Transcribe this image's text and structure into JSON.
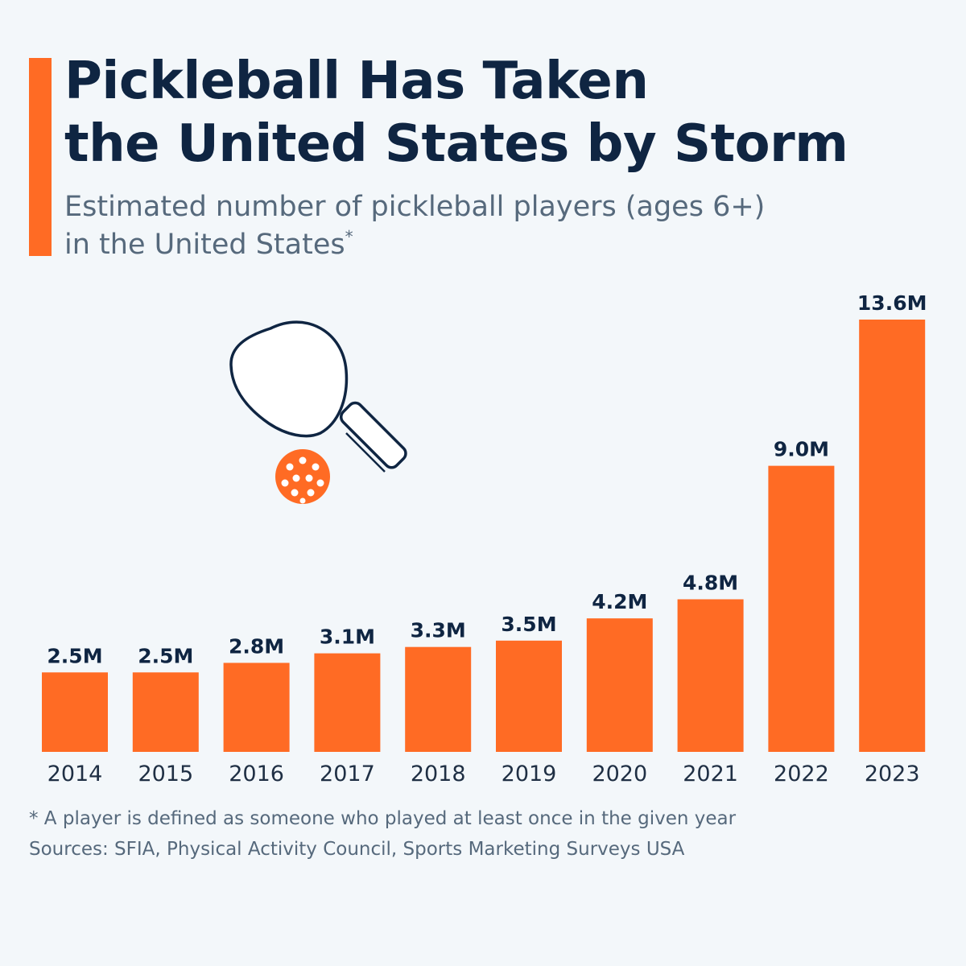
{
  "header": {
    "title_line1": "Pickleball Has Taken",
    "title_line2": "the United States by Storm",
    "subtitle_line1": "Estimated number of pickleball players (ages 6+)",
    "subtitle_line2": "in the United States",
    "subtitle_marker": "*"
  },
  "colors": {
    "accent": "#ff6b24",
    "title": "#0f2542",
    "text": "#56697c",
    "background": "#f3f7fa"
  },
  "illustration": {
    "icon": "pickleball-paddle-and-ball-icon"
  },
  "chart_data": {
    "type": "bar",
    "title": "Pickleball Has Taken the United States by Storm",
    "subtitle": "Estimated number of pickleball players (ages 6+) in the United States*",
    "xlabel": "",
    "ylabel": "",
    "categories": [
      "2014",
      "2015",
      "2016",
      "2017",
      "2018",
      "2019",
      "2020",
      "2021",
      "2022",
      "2023"
    ],
    "values": [
      2.5,
      2.5,
      2.8,
      3.1,
      3.3,
      3.5,
      4.2,
      4.8,
      9.0,
      13.6
    ],
    "value_labels": [
      "2.5M",
      "2.5M",
      "2.8M",
      "3.1M",
      "3.3M",
      "3.5M",
      "4.2M",
      "4.8M",
      "9.0M",
      "13.6M"
    ],
    "unit": "M",
    "ylim": [
      0,
      13.6
    ],
    "grid": false,
    "legend": "none",
    "bar_color": "#ff6b24"
  },
  "footer": {
    "note": "* A player is defined as someone who played at least once in the given year",
    "sources": "Sources: SFIA, Physical Activity Council, Sports Marketing Surveys USA"
  }
}
